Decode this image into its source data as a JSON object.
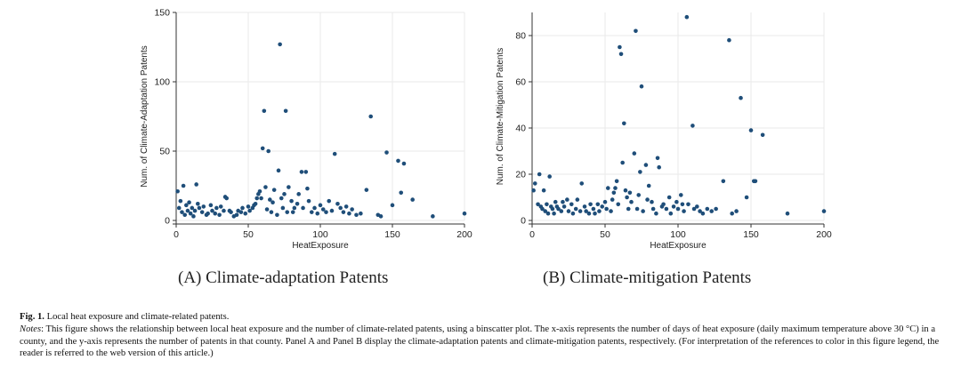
{
  "chart_data": [
    {
      "type": "scatter",
      "panel": "A",
      "xlabel": "HeatExposure",
      "ylabel": "Num. of Climate-Adaptation Patents",
      "xlim": [
        0,
        200
      ],
      "ylim": [
        0,
        150
      ],
      "xticks": [
        0,
        50,
        100,
        150,
        200
      ],
      "yticks": [
        0,
        50,
        100,
        150
      ],
      "grid": true,
      "color": "#1f4e79",
      "points": [
        [
          1,
          21
        ],
        [
          2,
          9
        ],
        [
          3,
          14
        ],
        [
          4,
          6
        ],
        [
          5,
          25
        ],
        [
          6,
          4
        ],
        [
          7,
          11
        ],
        [
          8,
          7
        ],
        [
          9,
          13
        ],
        [
          10,
          5
        ],
        [
          11,
          9
        ],
        [
          12,
          3
        ],
        [
          13,
          7
        ],
        [
          14,
          26
        ],
        [
          15,
          12
        ],
        [
          16,
          9
        ],
        [
          18,
          6
        ],
        [
          19,
          10
        ],
        [
          21,
          4
        ],
        [
          22,
          5
        ],
        [
          24,
          11
        ],
        [
          25,
          7
        ],
        [
          27,
          5
        ],
        [
          28,
          9
        ],
        [
          30,
          4
        ],
        [
          31,
          10
        ],
        [
          33,
          7
        ],
        [
          34,
          17
        ],
        [
          35,
          16
        ],
        [
          37,
          7
        ],
        [
          38,
          6
        ],
        [
          40,
          3
        ],
        [
          42,
          4
        ],
        [
          43,
          7
        ],
        [
          45,
          6
        ],
        [
          46,
          9
        ],
        [
          48,
          5
        ],
        [
          50,
          10
        ],
        [
          51,
          7
        ],
        [
          53,
          9
        ],
        [
          54,
          11
        ],
        [
          55,
          12
        ],
        [
          56,
          16
        ],
        [
          57,
          19
        ],
        [
          58,
          21
        ],
        [
          59,
          16
        ],
        [
          60,
          52
        ],
        [
          61,
          79
        ],
        [
          62,
          24
        ],
        [
          63,
          8
        ],
        [
          64,
          50
        ],
        [
          65,
          15
        ],
        [
          66,
          6
        ],
        [
          67,
          13
        ],
        [
          68,
          22
        ],
        [
          70,
          4
        ],
        [
          71,
          36
        ],
        [
          72,
          127
        ],
        [
          73,
          16
        ],
        [
          74,
          9
        ],
        [
          75,
          19
        ],
        [
          76,
          79
        ],
        [
          77,
          6
        ],
        [
          78,
          24
        ],
        [
          80,
          14
        ],
        [
          81,
          6
        ],
        [
          82,
          9
        ],
        [
          84,
          12
        ],
        [
          85,
          19
        ],
        [
          87,
          35
        ],
        [
          88,
          9
        ],
        [
          90,
          35
        ],
        [
          91,
          23
        ],
        [
          92,
          14
        ],
        [
          94,
          6
        ],
        [
          96,
          9
        ],
        [
          98,
          5
        ],
        [
          100,
          11
        ],
        [
          102,
          8
        ],
        [
          104,
          6
        ],
        [
          106,
          14
        ],
        [
          108,
          7
        ],
        [
          110,
          48
        ],
        [
          112,
          12
        ],
        [
          114,
          9
        ],
        [
          116,
          6
        ],
        [
          118,
          10
        ],
        [
          120,
          5
        ],
        [
          122,
          8
        ],
        [
          125,
          4
        ],
        [
          128,
          5
        ],
        [
          132,
          22
        ],
        [
          135,
          75
        ],
        [
          140,
          4
        ],
        [
          142,
          3
        ],
        [
          146,
          49
        ],
        [
          150,
          11
        ],
        [
          154,
          43
        ],
        [
          156,
          20
        ],
        [
          158,
          41
        ],
        [
          164,
          15
        ],
        [
          178,
          3
        ],
        [
          200,
          5
        ]
      ]
    },
    {
      "type": "scatter",
      "panel": "B",
      "xlabel": "HeatExposure",
      "ylabel": "Num. of Climate-Mitigation Patents",
      "xlim": [
        0,
        200
      ],
      "ylim": [
        0,
        90
      ],
      "xticks": [
        0,
        50,
        100,
        150,
        200
      ],
      "yticks": [
        0,
        20,
        40,
        60,
        80
      ],
      "grid": true,
      "color": "#1f4e79",
      "points": [
        [
          1,
          13
        ],
        [
          2,
          16
        ],
        [
          4,
          7
        ],
        [
          5,
          20
        ],
        [
          6,
          6
        ],
        [
          7,
          5
        ],
        [
          8,
          13
        ],
        [
          9,
          4
        ],
        [
          10,
          7
        ],
        [
          11,
          3
        ],
        [
          12,
          19
        ],
        [
          13,
          6
        ],
        [
          14,
          5
        ],
        [
          15,
          3
        ],
        [
          16,
          8
        ],
        [
          17,
          6
        ],
        [
          18,
          5
        ],
        [
          20,
          4
        ],
        [
          21,
          8
        ],
        [
          22,
          6
        ],
        [
          24,
          9
        ],
        [
          25,
          4
        ],
        [
          27,
          7
        ],
        [
          28,
          3
        ],
        [
          30,
          5
        ],
        [
          31,
          9
        ],
        [
          33,
          4
        ],
        [
          34,
          16
        ],
        [
          36,
          6
        ],
        [
          37,
          4
        ],
        [
          39,
          3
        ],
        [
          40,
          7
        ],
        [
          42,
          5
        ],
        [
          43,
          3
        ],
        [
          45,
          7
        ],
        [
          46,
          4
        ],
        [
          48,
          6
        ],
        [
          50,
          8
        ],
        [
          51,
          5
        ],
        [
          52,
          14
        ],
        [
          54,
          4
        ],
        [
          55,
          9
        ],
        [
          56,
          12
        ],
        [
          57,
          14
        ],
        [
          58,
          17
        ],
        [
          59,
          7
        ],
        [
          60,
          75
        ],
        [
          61,
          72
        ],
        [
          62,
          25
        ],
        [
          63,
          42
        ],
        [
          64,
          13
        ],
        [
          65,
          10
        ],
        [
          66,
          5
        ],
        [
          67,
          12
        ],
        [
          68,
          8
        ],
        [
          70,
          29
        ],
        [
          71,
          82
        ],
        [
          72,
          5
        ],
        [
          73,
          11
        ],
        [
          74,
          21
        ],
        [
          75,
          58
        ],
        [
          76,
          4
        ],
        [
          78,
          24
        ],
        [
          79,
          9
        ],
        [
          80,
          15
        ],
        [
          82,
          8
        ],
        [
          83,
          5
        ],
        [
          85,
          3
        ],
        [
          86,
          27
        ],
        [
          87,
          23
        ],
        [
          89,
          6
        ],
        [
          90,
          7
        ],
        [
          92,
          5
        ],
        [
          94,
          10
        ],
        [
          95,
          3
        ],
        [
          97,
          6
        ],
        [
          99,
          8
        ],
        [
          100,
          5
        ],
        [
          102,
          11
        ],
        [
          103,
          7
        ],
        [
          104,
          4
        ],
        [
          106,
          88
        ],
        [
          107,
          7
        ],
        [
          110,
          41
        ],
        [
          111,
          5
        ],
        [
          113,
          6
        ],
        [
          115,
          4
        ],
        [
          117,
          3
        ],
        [
          120,
          5
        ],
        [
          123,
          4
        ],
        [
          126,
          5
        ],
        [
          131,
          17
        ],
        [
          135,
          78
        ],
        [
          137,
          3
        ],
        [
          140,
          4
        ],
        [
          143,
          53
        ],
        [
          147,
          10
        ],
        [
          150,
          39
        ],
        [
          152,
          17
        ],
        [
          153,
          17
        ],
        [
          158,
          37
        ],
        [
          175,
          3
        ],
        [
          200,
          4
        ]
      ]
    }
  ],
  "captions": {
    "panel_a": "(A)  Climate-adaptation Patents",
    "panel_b": "(B)  Climate-mitigation Patents"
  },
  "figure": {
    "label": "Fig. 1.",
    "title": "Local heat exposure and climate-related patents.",
    "notes_head": "Notes",
    "notes_text": ": This figure shows the relationship between local heat exposure and the number of climate-related patents, using a binscatter plot. The x-axis represents the number of days of heat exposure (daily maximum temperature above 30 °C) in a county, and the y-axis represents the number of patents in that county. Panel A and Panel B display the climate-adaptation patents and climate-mitigation patents, respectively.  (For interpretation of the references to color in this figure legend, the reader is referred to the web version of this article.)"
  }
}
